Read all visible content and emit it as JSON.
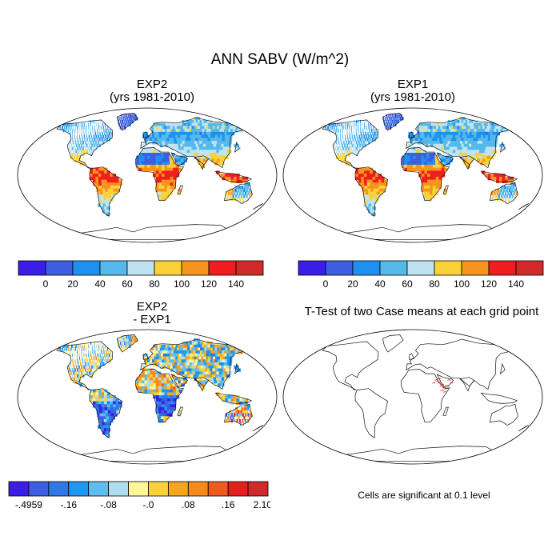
{
  "main_title": "ANN SABV (W/m^2)",
  "panels": {
    "exp2": {
      "title_line1": "EXP2",
      "title_line2": "(yrs 1981-2010)"
    },
    "exp1": {
      "title_line1": "EXP1",
      "title_line2": "(yrs 1981-2010)"
    },
    "diff": {
      "title_line1": "EXP2",
      "title_line2": "- EXP1"
    },
    "ttest": {
      "title": "T-Test of two Case means at each grid point",
      "note": "Cells are significant at 0.1 level"
    }
  },
  "chart_data": [
    {
      "type": "heatmap",
      "name": "EXP2",
      "colorbar": {
        "labels": [
          "0",
          "20",
          "40",
          "60",
          "80",
          "100",
          "120",
          "140"
        ],
        "colors": [
          "#3a1ee6",
          "#3d5ee0",
          "#1e90f0",
          "#55b9ec",
          "#bfe3f0",
          "#fbd13a",
          "#f7941d",
          "#f01e1e",
          "#d02a2a"
        ]
      }
    },
    {
      "type": "heatmap",
      "name": "EXP1",
      "colorbar": {
        "labels": [
          "0",
          "20",
          "40",
          "60",
          "80",
          "100",
          "120",
          "140"
        ],
        "colors": [
          "#3a1ee6",
          "#3d5ee0",
          "#1e90f0",
          "#55b9ec",
          "#bfe3f0",
          "#fbd13a",
          "#f7941d",
          "#f01e1e",
          "#d02a2a"
        ]
      }
    },
    {
      "type": "heatmap",
      "name": "EXP2 - EXP1",
      "colorbar": {
        "labels": [
          "-.4959",
          "-.16",
          "-.08",
          "-.0",
          ".08",
          ".16",
          "2.1033"
        ],
        "label_slots": [
          0,
          2,
          4,
          6,
          8,
          10,
          12
        ],
        "colors": [
          "#3a1ee6",
          "#3d5ee0",
          "#2f78e6",
          "#1e98f0",
          "#5fbcee",
          "#aedcf0",
          "#fcf59a",
          "#fbd13a",
          "#f7a51d",
          "#f78a1a",
          "#f05a1e",
          "#e51e1e",
          "#d02a2a"
        ]
      }
    }
  ]
}
